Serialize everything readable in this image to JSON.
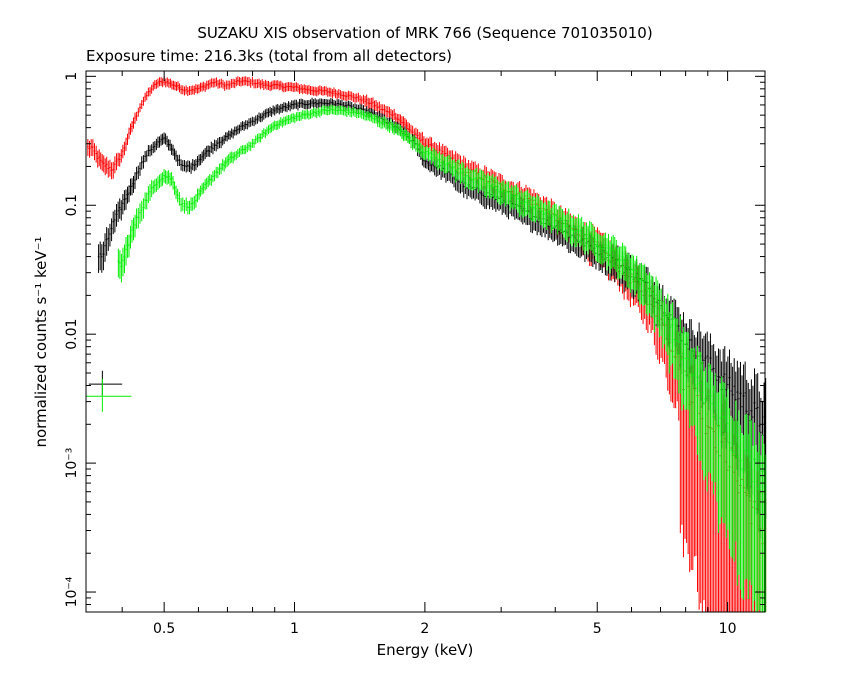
{
  "chart_data": {
    "type": "scatter",
    "title": "SUZAKU XIS observation of MRK 766 (Sequence 701035010)",
    "subtitle": "Exposure time: 216.3ks (total from all detectors)",
    "xlabel": "Energy (keV)",
    "ylabel": "normalized counts s⁻¹ keV⁻¹",
    "x_scale": "log",
    "y_scale": "log",
    "xlim": [
      0.33,
      12.2
    ],
    "ylim": [
      7e-05,
      1.1
    ],
    "x_ticks": [
      {
        "value": 0.5,
        "label": "0.5"
      },
      {
        "value": 1,
        "label": "1"
      },
      {
        "value": 2,
        "label": "2"
      },
      {
        "value": 5,
        "label": "5"
      },
      {
        "value": 10,
        "label": "10"
      }
    ],
    "y_ticks": [
      {
        "value": 1,
        "label": "1"
      },
      {
        "value": 0.1,
        "label": "0.1"
      },
      {
        "value": 0.01,
        "label": "0.01"
      },
      {
        "value": 0.001,
        "label": "10⁻³"
      },
      {
        "value": 0.0001,
        "label": "10⁻⁴"
      }
    ],
    "grid": false,
    "series": [
      {
        "color": "#ff0000",
        "x": [
          0.34,
          0.36,
          0.38,
          0.4,
          0.42,
          0.44,
          0.46,
          0.48,
          0.5,
          0.53,
          0.56,
          0.6,
          0.65,
          0.7,
          0.75,
          0.8,
          0.85,
          0.9,
          1.0,
          1.1,
          1.2,
          1.3,
          1.4,
          1.5,
          1.6,
          1.7,
          1.8,
          1.9,
          2.0,
          2.2,
          2.5,
          3.0,
          3.5,
          4.0,
          4.5,
          5.0,
          5.5,
          6.0,
          6.5,
          7.0,
          7.5,
          8.0,
          9.0,
          10.0,
          11.0,
          12.0
        ],
        "y": [
          0.28,
          0.21,
          0.19,
          0.25,
          0.4,
          0.58,
          0.75,
          0.88,
          0.92,
          0.85,
          0.78,
          0.8,
          0.9,
          0.85,
          0.92,
          0.9,
          0.86,
          0.85,
          0.82,
          0.78,
          0.76,
          0.72,
          0.68,
          0.62,
          0.55,
          0.5,
          0.42,
          0.35,
          0.3,
          0.25,
          0.19,
          0.14,
          0.11,
          0.08,
          0.062,
          0.048,
          0.036,
          0.027,
          0.02,
          0.013,
          0.008,
          0.0045,
          0.0022,
          0.0012,
          0.0006,
          0.0003
        ],
        "yerr_frac": [
          0.15,
          0.15,
          0.15,
          0.12,
          0.1,
          0.08,
          0.08,
          0.08,
          0.08,
          0.08,
          0.08,
          0.08,
          0.08,
          0.08,
          0.08,
          0.08,
          0.08,
          0.08,
          0.08,
          0.08,
          0.08,
          0.08,
          0.08,
          0.1,
          0.1,
          0.1,
          0.12,
          0.12,
          0.15,
          0.15,
          0.18,
          0.2,
          0.22,
          0.25,
          0.25,
          0.3,
          0.3,
          0.35,
          0.4,
          0.5,
          0.6,
          0.95,
          0.97,
          0.98,
          0.98,
          0.98
        ]
      },
      {
        "color": "#000000",
        "x": [
          0.36,
          0.38,
          0.4,
          0.42,
          0.44,
          0.46,
          0.48,
          0.5,
          0.52,
          0.55,
          0.58,
          0.62,
          0.66,
          0.7,
          0.75,
          0.8,
          0.85,
          0.9,
          1.0,
          1.1,
          1.2,
          1.3,
          1.4,
          1.5,
          1.6,
          1.7,
          1.8,
          1.9,
          2.0,
          2.2,
          2.5,
          3.0,
          3.5,
          4.0,
          4.5,
          5.0,
          5.5,
          6.0,
          6.5,
          7.0,
          7.5,
          8.0,
          9.0,
          10.0,
          11.0,
          12.0
        ],
        "y": [
          0.04,
          0.07,
          0.1,
          0.14,
          0.2,
          0.26,
          0.3,
          0.33,
          0.28,
          0.2,
          0.2,
          0.25,
          0.3,
          0.34,
          0.4,
          0.45,
          0.5,
          0.55,
          0.6,
          0.62,
          0.62,
          0.6,
          0.56,
          0.52,
          0.46,
          0.41,
          0.36,
          0.3,
          0.22,
          0.19,
          0.14,
          0.11,
          0.085,
          0.068,
          0.055,
          0.045,
          0.037,
          0.03,
          0.024,
          0.018,
          0.013,
          0.009,
          0.006,
          0.004,
          0.003,
          0.002
        ],
        "yerr_frac": [
          0.25,
          0.2,
          0.18,
          0.15,
          0.12,
          0.1,
          0.1,
          0.1,
          0.1,
          0.1,
          0.1,
          0.1,
          0.1,
          0.08,
          0.08,
          0.08,
          0.08,
          0.08,
          0.08,
          0.08,
          0.08,
          0.08,
          0.08,
          0.08,
          0.1,
          0.1,
          0.1,
          0.12,
          0.12,
          0.15,
          0.18,
          0.2,
          0.22,
          0.22,
          0.25,
          0.25,
          0.28,
          0.3,
          0.32,
          0.35,
          0.4,
          0.45,
          0.55,
          0.65,
          0.75,
          0.85
        ]
      },
      {
        "color": "#00ee00",
        "x": [
          0.4,
          0.42,
          0.44,
          0.46,
          0.48,
          0.5,
          0.52,
          0.55,
          0.58,
          0.62,
          0.66,
          0.7,
          0.75,
          0.8,
          0.85,
          0.9,
          1.0,
          1.1,
          1.2,
          1.3,
          1.4,
          1.5,
          1.6,
          1.7,
          1.8,
          1.9,
          2.0,
          2.2,
          2.5,
          3.0,
          3.5,
          4.0,
          4.5,
          5.0,
          5.5,
          6.0,
          6.5,
          7.0,
          7.5,
          8.0,
          9.0,
          10.0,
          11.0,
          12.0
        ],
        "y": [
          0.035,
          0.06,
          0.09,
          0.12,
          0.15,
          0.17,
          0.16,
          0.1,
          0.1,
          0.14,
          0.18,
          0.22,
          0.26,
          0.3,
          0.36,
          0.42,
          0.48,
          0.52,
          0.55,
          0.54,
          0.52,
          0.48,
          0.44,
          0.4,
          0.35,
          0.3,
          0.26,
          0.22,
          0.17,
          0.13,
          0.1,
          0.08,
          0.065,
          0.052,
          0.042,
          0.032,
          0.024,
          0.016,
          0.01,
          0.006,
          0.003,
          0.0018,
          0.0011,
          0.0008
        ],
        "yerr_frac": [
          0.25,
          0.2,
          0.18,
          0.15,
          0.12,
          0.12,
          0.12,
          0.12,
          0.12,
          0.1,
          0.1,
          0.1,
          0.08,
          0.08,
          0.08,
          0.08,
          0.08,
          0.08,
          0.08,
          0.08,
          0.08,
          0.08,
          0.1,
          0.1,
          0.1,
          0.12,
          0.12,
          0.15,
          0.18,
          0.2,
          0.22,
          0.22,
          0.25,
          0.25,
          0.28,
          0.3,
          0.35,
          0.4,
          0.5,
          0.6,
          0.75,
          0.85,
          0.9,
          0.92
        ]
      }
    ],
    "legend_crosses": [
      {
        "color": "#000000",
        "x": 0.36,
        "y": 0.0041,
        "x_lo": 0.335,
        "x_hi": 0.4,
        "y_lo": 0.0033,
        "y_hi": 0.0052
      },
      {
        "color": "#00ee00",
        "x": 0.36,
        "y": 0.0033,
        "x_lo": 0.33,
        "x_hi": 0.42,
        "y_lo": 0.0025,
        "y_hi": 0.0045
      }
    ]
  }
}
